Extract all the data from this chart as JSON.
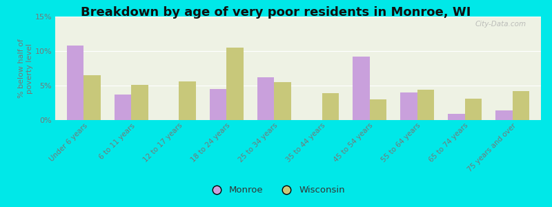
{
  "title": "Breakdown by age of very poor residents in Monroe, WI",
  "ylabel": "% below half of\npoverty level",
  "categories": [
    "Under 6 years",
    "6 to 11 years",
    "12 to 17 years",
    "18 to 24 years",
    "25 to 34 years",
    "35 to 44 years",
    "45 to 54 years",
    "55 to 64 years",
    "65 to 74 years",
    "75 years and over"
  ],
  "monroe_values": [
    10.8,
    3.7,
    0.0,
    4.5,
    6.2,
    0.0,
    9.2,
    4.0,
    0.9,
    1.4
  ],
  "wisconsin_values": [
    6.5,
    5.1,
    5.6,
    10.5,
    5.5,
    3.9,
    3.0,
    4.4,
    3.1,
    4.2
  ],
  "monroe_color": "#c9a0dc",
  "wisconsin_color": "#c8c87a",
  "background_outer": "#00e8e8",
  "background_plot": "#eef2e4",
  "ylim": [
    0,
    15
  ],
  "yticks": [
    0,
    5,
    10,
    15
  ],
  "ytick_labels": [
    "0%",
    "5%",
    "10%",
    "15%"
  ],
  "bar_width": 0.35,
  "title_fontsize": 13,
  "legend_labels": [
    "Monroe",
    "Wisconsin"
  ],
  "watermark": "City-Data.com",
  "tick_color": "#777777",
  "title_color": "#111111"
}
